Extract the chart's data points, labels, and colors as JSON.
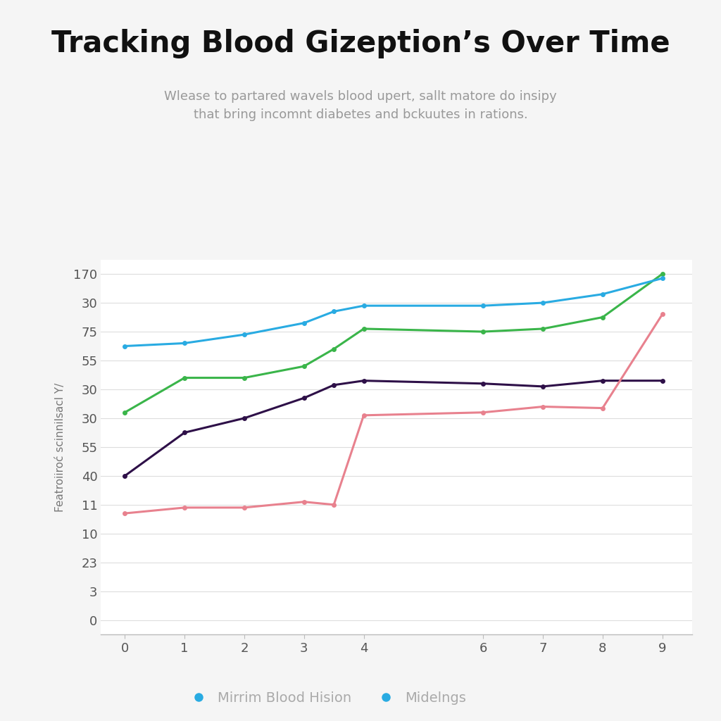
{
  "title": "Tracking Blood Gizeption’s Over Time",
  "subtitle": "Wlease to partared wavels blood upert, sallt matore do insipy\nthat bring incomnt diabetes and bckuutes in rations.",
  "ylabel": "Featroiiroć scinnilsacl Y/",
  "x_ticks": [
    0,
    1,
    2,
    3,
    4,
    6,
    7,
    8,
    9
  ],
  "ytick_labels_top_to_bottom": [
    "170",
    "30",
    "75",
    "55",
    "30",
    "30",
    "55",
    "40",
    "11",
    "10",
    "23",
    "3",
    "0"
  ],
  "series_mapped": [
    {
      "name": "green",
      "color": "#3ab54a",
      "x": [
        0,
        1,
        2,
        3,
        3.5,
        4,
        6,
        7,
        8,
        9
      ],
      "y": [
        7.2,
        8.4,
        8.4,
        8.8,
        9.4,
        10.1,
        10.0,
        10.1,
        10.5,
        12.0
      ]
    },
    {
      "name": "blue",
      "color": "#29abe2",
      "x": [
        0,
        1,
        2,
        3,
        3.5,
        4,
        6,
        7,
        8,
        9
      ],
      "y": [
        9.5,
        9.6,
        9.9,
        10.3,
        10.7,
        10.9,
        10.9,
        11.0,
        11.3,
        11.85
      ]
    },
    {
      "name": "darkpurple",
      "color": "#2e1048",
      "x": [
        0,
        1,
        2,
        3,
        3.5,
        4,
        6,
        7,
        8,
        9
      ],
      "y": [
        5.0,
        6.5,
        7.0,
        7.7,
        8.15,
        8.3,
        8.2,
        8.1,
        8.3,
        8.3
      ]
    },
    {
      "name": "pink",
      "color": "#e8818e",
      "x": [
        0,
        1,
        2,
        3,
        3.5,
        4,
        6,
        7,
        8,
        9
      ],
      "y": [
        3.7,
        3.9,
        3.9,
        4.1,
        4.0,
        7.1,
        7.2,
        7.4,
        7.35,
        10.6
      ]
    }
  ],
  "legend_items": [
    {
      "label": "Mirrim Blood Hision",
      "color": "#29abe2"
    },
    {
      "label": "Midelngs",
      "color": "#29abe2"
    }
  ],
  "background_color": "#f5f5f5",
  "plot_bg_color": "#ffffff",
  "title_fontsize": 30,
  "subtitle_fontsize": 13,
  "ylabel_fontsize": 11,
  "tick_fontsize": 13
}
